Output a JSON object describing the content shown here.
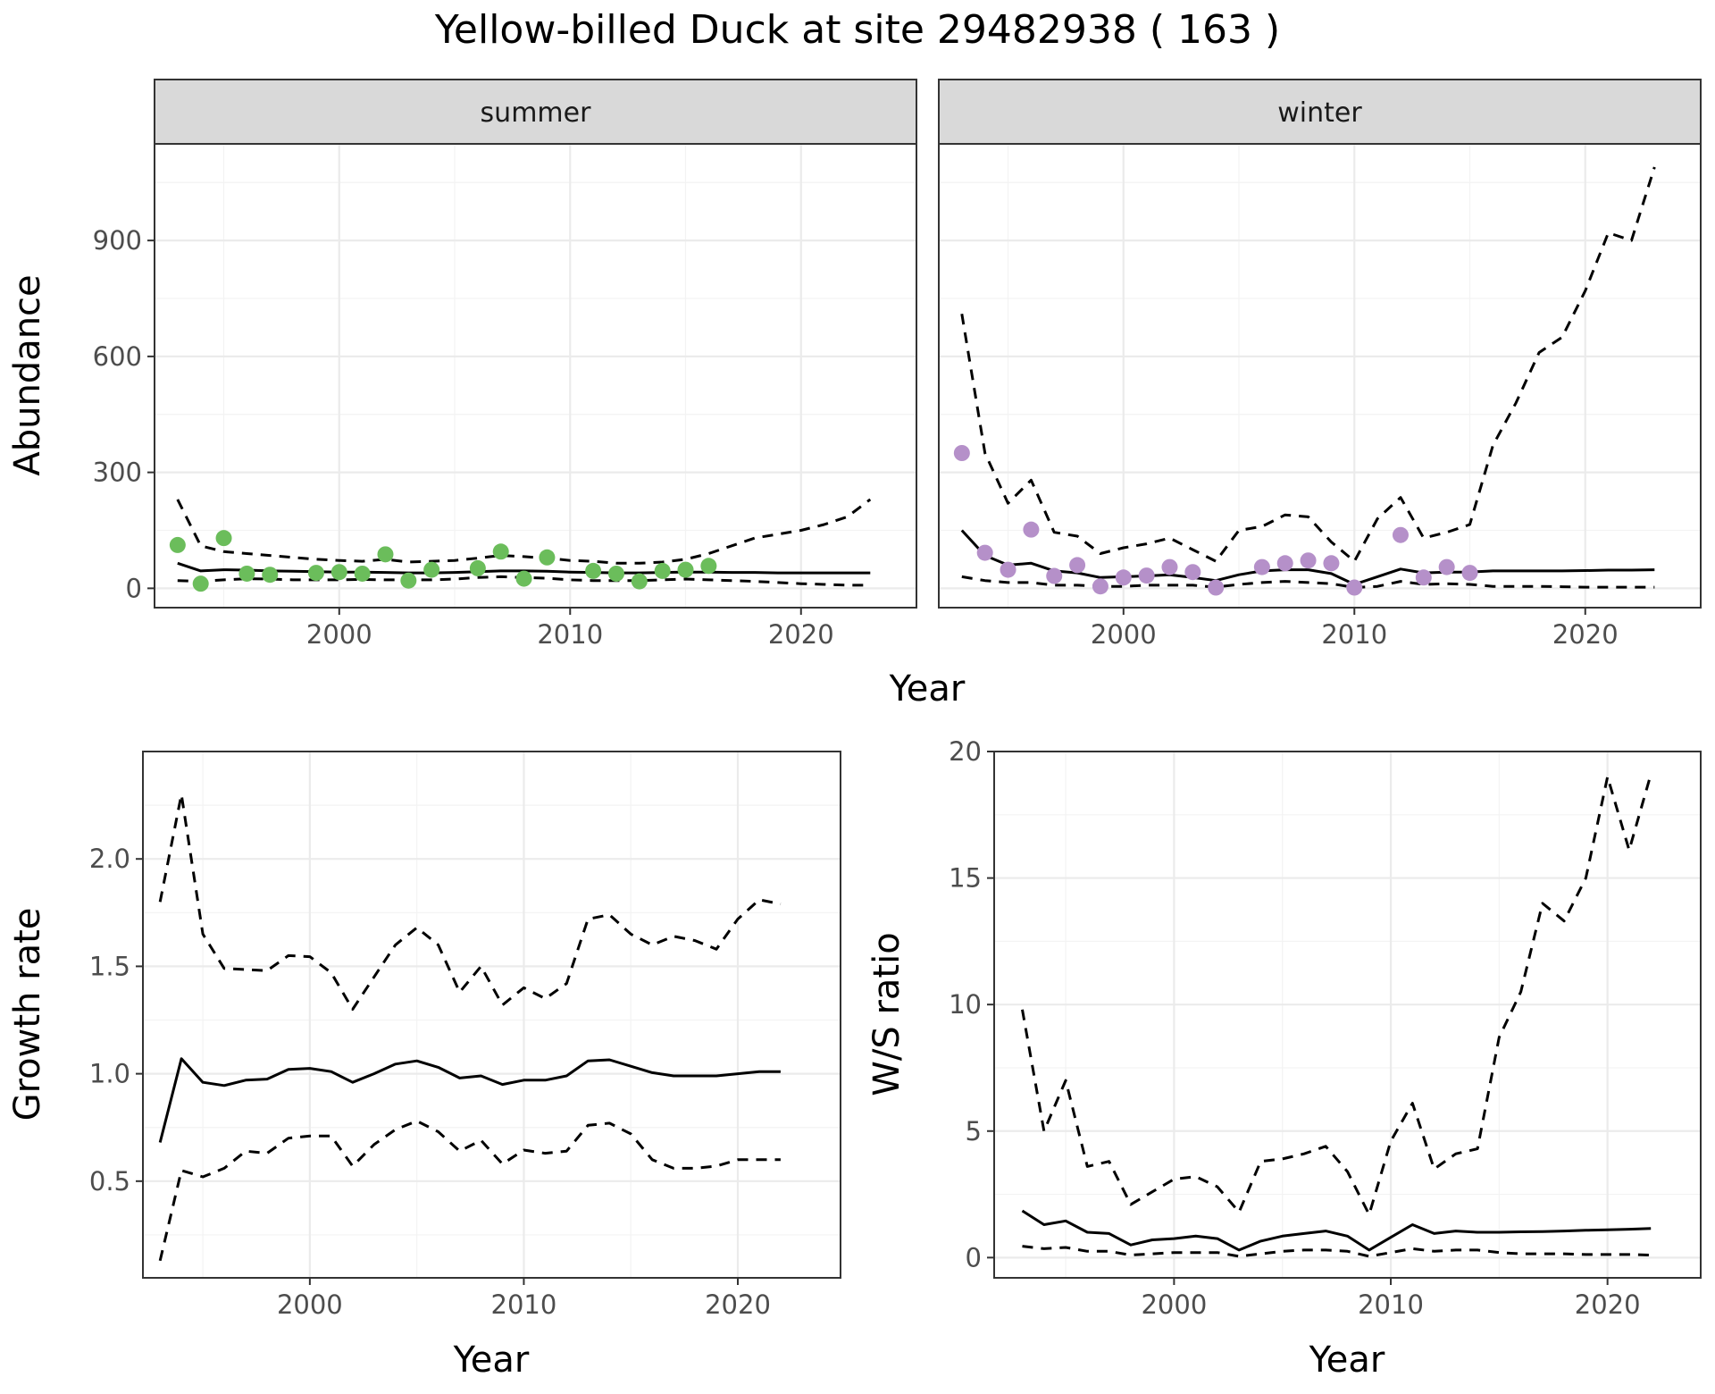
{
  "title": "Yellow-billed Duck at site 29482938 ( 163 )",
  "colors": {
    "summer_points": "#6bbd5b",
    "winter_points": "#b590c9",
    "lines": "#000000",
    "strip_fill": "#d9d9d9"
  },
  "chart_data": [
    {
      "type": "line",
      "facet": "summer",
      "xlabel": "Year",
      "ylabel": "Abundance",
      "xlim": [
        1992,
        2025
      ],
      "ylim": [
        -50,
        1150
      ],
      "x_ticks": [
        2000,
        2010,
        2020
      ],
      "y_ticks": [
        0,
        300,
        600,
        900
      ],
      "grid": true,
      "years": [
        1993,
        1994,
        1995,
        1996,
        1997,
        1998,
        1999,
        2000,
        2001,
        2002,
        2003,
        2004,
        2005,
        2006,
        2007,
        2008,
        2009,
        2010,
        2011,
        2012,
        2013,
        2014,
        2015,
        2016,
        2017,
        2018,
        2019,
        2020,
        2021,
        2022,
        2023
      ],
      "series": [
        {
          "role": "estimate",
          "style": "solid",
          "values": [
            65,
            45,
            48,
            47,
            45,
            44,
            43,
            42,
            42,
            41,
            40,
            40,
            41,
            43,
            45,
            45,
            44,
            42,
            41,
            40,
            40,
            41,
            42,
            42,
            41,
            41,
            40,
            40,
            40,
            40,
            40
          ]
        },
        {
          "role": "upper",
          "style": "dashed",
          "values": [
            230,
            110,
            95,
            90,
            85,
            80,
            75,
            72,
            70,
            75,
            68,
            70,
            72,
            78,
            85,
            82,
            78,
            72,
            70,
            65,
            65,
            68,
            75,
            90,
            110,
            130,
            140,
            150,
            165,
            185,
            230
          ]
        },
        {
          "role": "lower",
          "style": "dashed",
          "values": [
            20,
            18,
            22,
            25,
            24,
            22,
            22,
            22,
            23,
            22,
            22,
            22,
            24,
            28,
            30,
            28,
            26,
            22,
            20,
            20,
            20,
            22,
            24,
            22,
            20,
            18,
            15,
            12,
            10,
            8,
            8
          ]
        }
      ],
      "points": {
        "x": [
          1993,
          1994,
          1995,
          1996,
          1997,
          1999,
          2000,
          2001,
          2002,
          2003,
          2004,
          2006,
          2007,
          2008,
          2009,
          2011,
          2012,
          2013,
          2014,
          2015,
          2016
        ],
        "y": [
          112,
          12,
          130,
          38,
          35,
          40,
          42,
          38,
          88,
          20,
          48,
          52,
          95,
          25,
          80,
          45,
          38,
          18,
          45,
          48,
          58
        ]
      }
    },
    {
      "type": "line",
      "facet": "winter",
      "xlabel": "Year",
      "ylabel": "Abundance",
      "xlim": [
        1992,
        2025
      ],
      "ylim": [
        -50,
        1150
      ],
      "x_ticks": [
        2000,
        2010,
        2020
      ],
      "y_ticks": [
        0,
        300,
        600,
        900
      ],
      "grid": true,
      "years": [
        1993,
        1994,
        1995,
        1996,
        1997,
        1998,
        1999,
        2000,
        2001,
        2002,
        2003,
        2004,
        2005,
        2006,
        2007,
        2008,
        2009,
        2010,
        2011,
        2012,
        2013,
        2014,
        2015,
        2016,
        2017,
        2018,
        2019,
        2020,
        2021,
        2022,
        2023
      ],
      "series": [
        {
          "role": "estimate",
          "style": "solid",
          "values": [
            150,
            85,
            60,
            65,
            45,
            40,
            28,
            30,
            32,
            35,
            28,
            20,
            35,
            45,
            48,
            48,
            38,
            10,
            30,
            50,
            40,
            42,
            42,
            45,
            45,
            45,
            45,
            46,
            47,
            47,
            48
          ]
        },
        {
          "role": "upper",
          "style": "dashed",
          "values": [
            710,
            350,
            220,
            280,
            145,
            135,
            90,
            105,
            115,
            130,
            100,
            70,
            150,
            160,
            190,
            185,
            120,
            70,
            180,
            235,
            130,
            145,
            165,
            370,
            480,
            610,
            650,
            770,
            920,
            900,
            1090
          ]
        },
        {
          "role": "lower",
          "style": "dashed",
          "values": [
            30,
            20,
            15,
            15,
            8,
            8,
            5,
            5,
            8,
            8,
            8,
            3,
            10,
            15,
            18,
            15,
            12,
            2,
            5,
            18,
            10,
            12,
            10,
            5,
            5,
            5,
            4,
            3,
            3,
            3,
            3
          ]
        }
      ],
      "points": {
        "x": [
          1993,
          1994,
          1995,
          1996,
          1997,
          1998,
          1999,
          2000,
          2001,
          2002,
          2003,
          2004,
          2006,
          2007,
          2008,
          2009,
          2010,
          2012,
          2013,
          2014,
          2015
        ],
        "y": [
          350,
          92,
          48,
          152,
          32,
          60,
          5,
          28,
          33,
          55,
          42,
          2,
          55,
          65,
          72,
          65,
          2,
          138,
          28,
          55,
          40
        ]
      }
    },
    {
      "type": "line",
      "facet": "growth",
      "xlabel": "Year",
      "ylabel": "Growth rate",
      "xlim": [
        1992.2,
        2024.8
      ],
      "ylim": [
        0.05,
        2.5
      ],
      "x_ticks": [
        2000,
        2010,
        2020
      ],
      "y_ticks": [
        0.5,
        1.0,
        1.5,
        2.0
      ],
      "y_tick_labels": [
        "0.5",
        "1.0",
        "1.5",
        "2.0"
      ],
      "grid": true,
      "years": [
        1993,
        1994,
        1995,
        1996,
        1997,
        1998,
        1999,
        2000,
        2001,
        2002,
        2003,
        2004,
        2005,
        2006,
        2007,
        2008,
        2009,
        2010,
        2011,
        2012,
        2013,
        2014,
        2015,
        2016,
        2017,
        2018,
        2019,
        2020,
        2021,
        2022
      ],
      "series": [
        {
          "role": "estimate",
          "style": "solid",
          "values": [
            0.68,
            1.07,
            0.96,
            0.945,
            0.97,
            0.975,
            1.02,
            1.025,
            1.01,
            0.96,
            1.0,
            1.045,
            1.06,
            1.03,
            0.98,
            0.99,
            0.95,
            0.97,
            0.97,
            0.99,
            1.06,
            1.065,
            1.035,
            1.005,
            0.99,
            0.99,
            0.99,
            1.0,
            1.01,
            1.01
          ]
        },
        {
          "role": "upper",
          "style": "dashed",
          "values": [
            1.8,
            2.3,
            1.65,
            1.49,
            1.485,
            1.48,
            1.55,
            1.545,
            1.47,
            1.3,
            1.45,
            1.6,
            1.68,
            1.6,
            1.38,
            1.5,
            1.32,
            1.4,
            1.35,
            1.42,
            1.72,
            1.74,
            1.65,
            1.6,
            1.64,
            1.62,
            1.58,
            1.72,
            1.81,
            1.79
          ]
        },
        {
          "role": "lower",
          "style": "dashed",
          "values": [
            0.13,
            0.55,
            0.52,
            0.56,
            0.64,
            0.63,
            0.7,
            0.71,
            0.71,
            0.57,
            0.67,
            0.74,
            0.78,
            0.73,
            0.64,
            0.69,
            0.58,
            0.645,
            0.63,
            0.64,
            0.76,
            0.77,
            0.72,
            0.6,
            0.56,
            0.56,
            0.57,
            0.6,
            0.6,
            0.6
          ]
        }
      ]
    },
    {
      "type": "line",
      "facet": "ws_ratio",
      "xlabel": "Year",
      "ylabel": "W/S ratio",
      "xlim": [
        1991.7,
        2024.3
      ],
      "ylim": [
        -0.8,
        20
      ],
      "x_ticks": [
        2000,
        2010,
        2020
      ],
      "y_ticks": [
        0,
        5,
        10,
        15,
        20
      ],
      "grid": true,
      "years": [
        1993,
        1994,
        1995,
        1996,
        1997,
        1998,
        1999,
        2000,
        2001,
        2002,
        2003,
        2004,
        2005,
        2006,
        2007,
        2008,
        2009,
        2010,
        2011,
        2012,
        2013,
        2014,
        2015,
        2016,
        2017,
        2018,
        2019,
        2020,
        2021,
        2022
      ],
      "series": [
        {
          "role": "estimate",
          "style": "solid",
          "values": [
            1.85,
            1.3,
            1.45,
            1.0,
            0.95,
            0.5,
            0.7,
            0.75,
            0.85,
            0.75,
            0.3,
            0.65,
            0.85,
            0.95,
            1.05,
            0.85,
            0.3,
            0.8,
            1.3,
            0.95,
            1.05,
            1.0,
            1.0,
            1.02,
            1.03,
            1.05,
            1.08,
            1.1,
            1.12,
            1.15
          ]
        },
        {
          "role": "upper",
          "style": "dashed",
          "values": [
            9.8,
            5.0,
            7.0,
            3.6,
            3.8,
            2.1,
            2.6,
            3.1,
            3.2,
            2.8,
            1.8,
            3.8,
            3.9,
            4.1,
            4.4,
            3.4,
            1.7,
            4.6,
            6.1,
            3.5,
            4.1,
            4.3,
            8.7,
            10.5,
            14.0,
            13.3,
            15.0,
            19.0,
            16.1,
            19.1
          ]
        },
        {
          "role": "lower",
          "style": "dashed",
          "values": [
            0.45,
            0.35,
            0.4,
            0.25,
            0.25,
            0.1,
            0.15,
            0.2,
            0.2,
            0.2,
            0.05,
            0.15,
            0.25,
            0.3,
            0.3,
            0.25,
            0.05,
            0.2,
            0.35,
            0.25,
            0.3,
            0.3,
            0.2,
            0.15,
            0.15,
            0.15,
            0.12,
            0.12,
            0.12,
            0.1
          ]
        }
      ]
    }
  ]
}
